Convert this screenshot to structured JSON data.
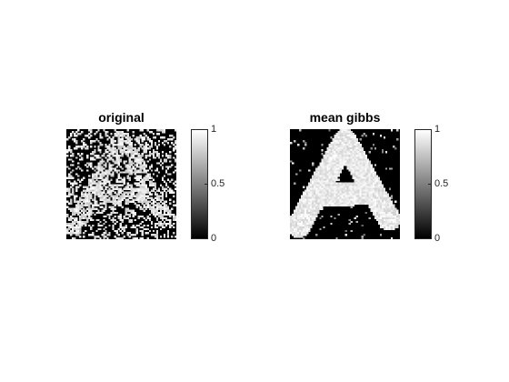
{
  "panels": [
    {
      "title": "original",
      "colorbar": {
        "ticks": [
          "0",
          "0.5",
          "1"
        ],
        "min": 0,
        "max": 1,
        "colormap": "gray"
      }
    },
    {
      "title": "mean gibbs",
      "colorbar": {
        "ticks": [
          "0",
          "0.5",
          "1"
        ],
        "min": 0,
        "max": 1,
        "colormap": "gray"
      }
    }
  ],
  "colors": {
    "background": "#ffffff",
    "axis_color": "#262626"
  }
}
